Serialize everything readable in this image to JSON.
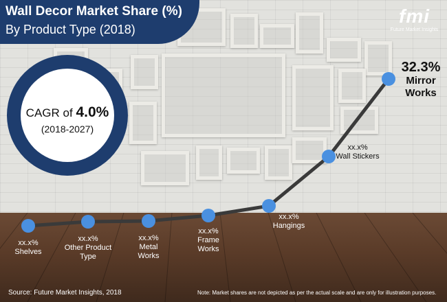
{
  "header": {
    "title": "Wall Decor Market Share (%)",
    "subtitle": "By Product Type (2018)"
  },
  "logo": {
    "text": "fmi",
    "subtext": "Future Market Insights"
  },
  "cagr": {
    "prefix": "CAGR of",
    "value": "4.0%",
    "period": "(2018-2027)"
  },
  "footer": {
    "source": "Source: Future Market Insights, 2018",
    "note": "Note: Market shares are not depicted as per the actual scale and are only for illustration purposes."
  },
  "colors": {
    "point": "#4a90e0",
    "line": "#3a3a3a",
    "banner": "#1e3d6e"
  },
  "chart_data": {
    "type": "line",
    "categories": [
      "Shelves",
      "Other Product Type",
      "Metal Works",
      "Frame Works",
      "Hangings",
      "Wall Stickers",
      "Mirror Works"
    ],
    "points": [
      {
        "category": "Shelves",
        "value": null,
        "value_label": "xx.x%",
        "label_lines": [
          "xx.x%",
          "Shelves"
        ]
      },
      {
        "category": "Other Product Type",
        "value": null,
        "value_label": "xx.x%",
        "label_lines": [
          "xx.x%",
          "Other Product",
          "Type"
        ]
      },
      {
        "category": "Metal Works",
        "value": null,
        "value_label": "xx.x%",
        "label_lines": [
          "xx.x%",
          "Metal",
          "Works"
        ]
      },
      {
        "category": "Frame Works",
        "value": null,
        "value_label": "xx.x%",
        "label_lines": [
          "xx.x%",
          "Frame",
          "Works"
        ]
      },
      {
        "category": "Hangings",
        "value": null,
        "value_label": "xx.x%",
        "label_lines": [
          "xx.x%",
          "Hangings"
        ]
      },
      {
        "category": "Wall Stickers",
        "value": null,
        "value_label": "xx.x%",
        "label_lines": [
          "xx.x%",
          "Wall Stickers"
        ]
      },
      {
        "category": "Mirror Works",
        "value": 32.3,
        "value_label": "32.3%",
        "label_lines": [
          "32.3%",
          "Mirror",
          "Works"
        ]
      }
    ],
    "title": "Wall Decor Market Share (%)",
    "subtitle": "By Product Type (2018)",
    "legend": "none",
    "grid": false
  }
}
